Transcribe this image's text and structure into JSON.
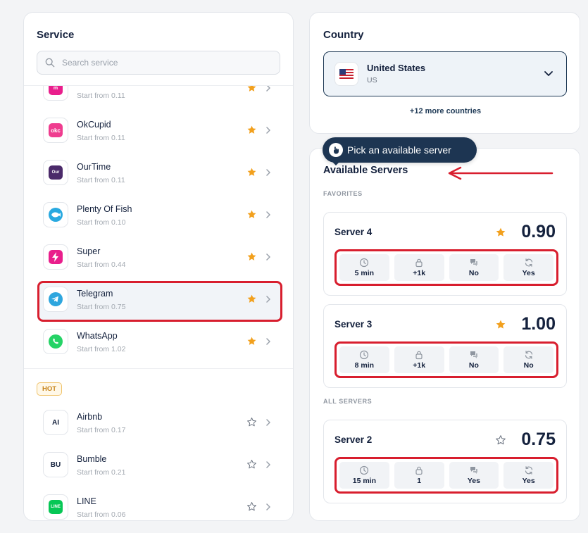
{
  "service_panel": {
    "title": "Service",
    "search_placeholder": "Search service",
    "favorites": [
      {
        "name": "",
        "price": "Start from 0.11",
        "logo": "pink-m-logo",
        "color": "#e91e8c",
        "starred": true
      },
      {
        "name": "OkCupid",
        "price": "Start from 0.11",
        "logo": "okc",
        "color": "#ef3c8f",
        "starred": true
      },
      {
        "name": "OurTime",
        "price": "Start from 0.11",
        "logo": "Our",
        "color": "#4b2a6a",
        "starred": true
      },
      {
        "name": "Plenty Of Fish",
        "price": "Start from 0.10",
        "logo": "fish-icon",
        "color": "#29a9e0",
        "starred": true
      },
      {
        "name": "Super",
        "price": "Start from 0.44",
        "logo": "bolt-icon",
        "color": "#e91e8c",
        "starred": true
      },
      {
        "name": "Telegram",
        "price": "Start from 0.75",
        "logo": "telegram-icon",
        "color": "#2ea6de",
        "starred": true,
        "selected": true
      },
      {
        "name": "WhatsApp",
        "price": "Start from 1.02",
        "logo": "whatsapp-icon",
        "color": "#25d366",
        "starred": true
      }
    ],
    "hot_label": "HOT",
    "hot": [
      {
        "name": "Airbnb",
        "price": "Start from 0.17",
        "logo": "AI",
        "starred": false
      },
      {
        "name": "Bumble",
        "price": "Start from 0.21",
        "logo": "BU",
        "starred": false
      },
      {
        "name": "LINE",
        "price": "Start from 0.06",
        "logo": "LINE",
        "color": "#06c755",
        "starred": false
      }
    ]
  },
  "country_panel": {
    "title": "Country",
    "selected_name": "United States",
    "selected_code": "US",
    "more": "+12 more countries"
  },
  "tooltip": {
    "text": "Pick an available server"
  },
  "servers_panel": {
    "title": "Available Servers",
    "favorites_label": "FAVORITES",
    "all_label": "ALL SERVERS",
    "favorites": [
      {
        "name": "Server 4",
        "price": "0.90",
        "starred": true,
        "stats": [
          "5 min",
          "+1k",
          "No",
          "Yes"
        ]
      },
      {
        "name": "Server 3",
        "price": "1.00",
        "starred": true,
        "stats": [
          "8 min",
          "+1k",
          "No",
          "No"
        ]
      }
    ],
    "all": [
      {
        "name": "Server 2",
        "price": "0.75",
        "starred": false,
        "stats": [
          "15 min",
          "1",
          "Yes",
          "Yes"
        ]
      }
    ]
  },
  "colors": {
    "accent": "#1d3552",
    "star": "#f2a01d",
    "highlight": "#d81e2e"
  }
}
